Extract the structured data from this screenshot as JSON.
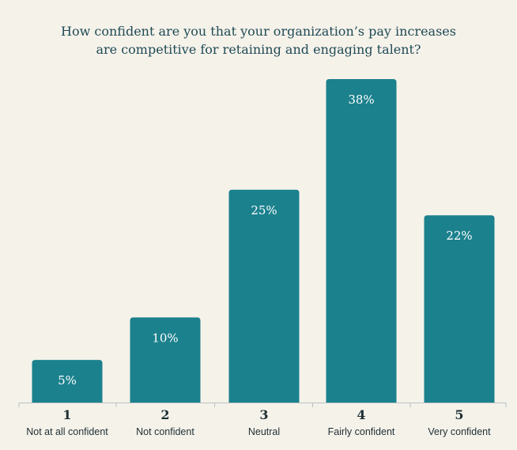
{
  "chart_data": {
    "type": "bar",
    "title_lines": [
      "How confident are you that your organization’s pay increases",
      "are competitive for retaining and engaging talent?"
    ],
    "categories": [
      "1",
      "2",
      "3",
      "4",
      "5"
    ],
    "category_labels": [
      "Not at all confident",
      "Not confident",
      "Neutral",
      "Fairly confident",
      "Very confident"
    ],
    "values": [
      5,
      10,
      25,
      38,
      22
    ],
    "value_labels": [
      "5%",
      "10%",
      "25%",
      "38%",
      "22%"
    ],
    "ylim": [
      0,
      38
    ],
    "grid": false,
    "bar_color": "#1b818d",
    "axis_color": "#b9c2c2"
  }
}
